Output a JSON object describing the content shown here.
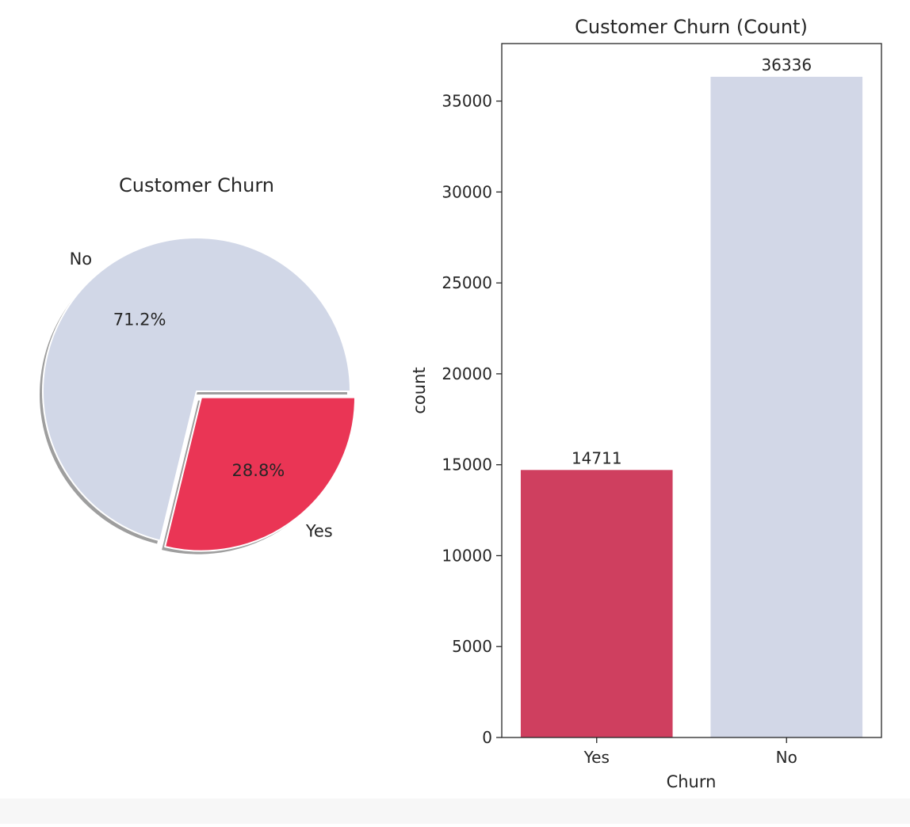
{
  "chart_data": [
    {
      "type": "pie",
      "title": "Customer Churn",
      "slices": [
        {
          "label": "No",
          "value": 71.2,
          "pct_label": "71.2%",
          "color": "#d1d7e7",
          "explode": false
        },
        {
          "label": "Yes",
          "value": 28.8,
          "pct_label": "28.8%",
          "color": "#ea3555",
          "explode": true
        }
      ],
      "shadow": true
    },
    {
      "type": "bar",
      "title": "Customer Churn (Count)",
      "categories": [
        "Yes",
        "No"
      ],
      "values": [
        14711,
        36336
      ],
      "data_labels": [
        "14711",
        "36336"
      ],
      "colors": [
        "#cf3f5f",
        "#d2d7e7"
      ],
      "xlabel": "Churn",
      "ylabel": "count",
      "ylim": [
        0,
        38163
      ],
      "yticks": [
        0,
        5000,
        10000,
        15000,
        20000,
        25000,
        30000,
        35000
      ],
      "grid": false
    }
  ]
}
